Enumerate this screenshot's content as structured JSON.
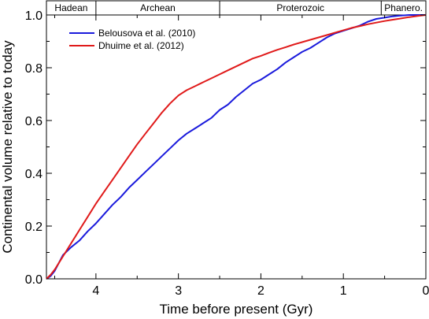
{
  "chart_data": {
    "type": "line",
    "xlabel": "Time before present  (Gyr)",
    "ylabel": "Continental volume relative to today",
    "xlim": [
      4.6,
      0
    ],
    "ylim": [
      0,
      1.0
    ],
    "x_ticks": [
      "4",
      "3",
      "2",
      "1",
      "0"
    ],
    "y_ticks": [
      "0.0",
      "0.2",
      "0.4",
      "0.6",
      "0.8",
      "1.0"
    ],
    "eras": [
      {
        "label": "Hadean",
        "start": 4.6,
        "end": 4.0
      },
      {
        "label": "Archean",
        "start": 4.0,
        "end": 2.5
      },
      {
        "label": "Proterozoic",
        "start": 2.5,
        "end": 0.541
      },
      {
        "label": "Phanero.",
        "start": 0.541,
        "end": 0
      }
    ],
    "legend_position": "top-left",
    "series": [
      {
        "name": "Belousova et al. (2010)",
        "color": "#1a1adc",
        "x": [
          4.6,
          4.55,
          4.5,
          4.45,
          4.4,
          4.3,
          4.2,
          4.1,
          4.0,
          3.9,
          3.8,
          3.7,
          3.6,
          3.5,
          3.4,
          3.3,
          3.2,
          3.1,
          3.0,
          2.9,
          2.8,
          2.7,
          2.6,
          2.5,
          2.4,
          2.3,
          2.2,
          2.1,
          2.0,
          1.9,
          1.8,
          1.7,
          1.6,
          1.5,
          1.4,
          1.3,
          1.2,
          1.1,
          1.0,
          0.9,
          0.8,
          0.7,
          0.6,
          0.5,
          0.4,
          0.3,
          0.2,
          0.1,
          0.0
        ],
        "y": [
          0.0,
          0.01,
          0.03,
          0.06,
          0.09,
          0.12,
          0.145,
          0.18,
          0.21,
          0.245,
          0.28,
          0.31,
          0.345,
          0.375,
          0.405,
          0.435,
          0.465,
          0.495,
          0.525,
          0.55,
          0.57,
          0.59,
          0.61,
          0.64,
          0.66,
          0.69,
          0.715,
          0.74,
          0.755,
          0.775,
          0.795,
          0.82,
          0.84,
          0.86,
          0.875,
          0.895,
          0.915,
          0.93,
          0.94,
          0.95,
          0.96,
          0.975,
          0.985,
          0.99,
          0.995,
          0.998,
          1.0,
          1.0,
          1.0
        ]
      },
      {
        "name": "Dhuime et al. (2012)",
        "color": "#e01a1a",
        "x": [
          4.6,
          4.55,
          4.5,
          4.4,
          4.3,
          4.2,
          4.1,
          4.0,
          3.9,
          3.8,
          3.7,
          3.6,
          3.5,
          3.4,
          3.3,
          3.2,
          3.1,
          3.0,
          2.9,
          2.8,
          2.7,
          2.6,
          2.5,
          2.4,
          2.3,
          2.2,
          2.1,
          2.0,
          1.9,
          1.8,
          1.7,
          1.6,
          1.5,
          1.4,
          1.3,
          1.2,
          1.1,
          1.0,
          0.9,
          0.8,
          0.7,
          0.6,
          0.5,
          0.4,
          0.3,
          0.2,
          0.1,
          0.0
        ],
        "y": [
          0.0,
          0.015,
          0.035,
          0.085,
          0.135,
          0.185,
          0.235,
          0.285,
          0.33,
          0.375,
          0.42,
          0.465,
          0.51,
          0.55,
          0.59,
          0.63,
          0.665,
          0.695,
          0.715,
          0.73,
          0.745,
          0.76,
          0.775,
          0.79,
          0.805,
          0.82,
          0.835,
          0.845,
          0.857,
          0.868,
          0.878,
          0.888,
          0.897,
          0.906,
          0.915,
          0.924,
          0.933,
          0.942,
          0.951,
          0.958,
          0.965,
          0.971,
          0.977,
          0.982,
          0.987,
          0.992,
          0.996,
          1.0
        ]
      }
    ]
  }
}
